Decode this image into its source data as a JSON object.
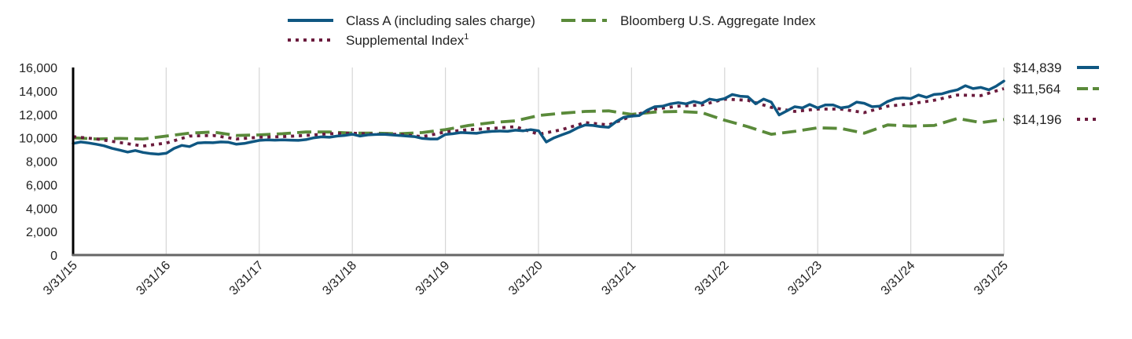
{
  "chart_data": {
    "type": "line",
    "title": "",
    "xlabel": "",
    "ylabel": "",
    "ylim": [
      0,
      16000
    ],
    "yticks": [
      0,
      2000,
      4000,
      6000,
      8000,
      10000,
      12000,
      14000,
      16000
    ],
    "ytick_labels": [
      "0",
      "2,000",
      "4,000",
      "6,000",
      "8,000",
      "10,000",
      "12,000",
      "14,000",
      "16,000"
    ],
    "xticks": [
      "3/31/15",
      "3/31/16",
      "3/31/17",
      "3/31/18",
      "3/31/19",
      "3/31/20",
      "3/31/21",
      "3/31/22",
      "3/31/23",
      "3/31/24",
      "3/31/25"
    ],
    "grid": "vertical",
    "legend_position": "top",
    "series": [
      {
        "name": "Class A (including sales charge)",
        "color": "#0f5782",
        "style": "solid",
        "end_label": "$14,839",
        "points": [
          [
            "2015-03-31",
            9520
          ],
          [
            "2015-04-30",
            9650
          ],
          [
            "2015-05-31",
            9560
          ],
          [
            "2015-06-30",
            9450
          ],
          [
            "2015-07-31",
            9320
          ],
          [
            "2015-08-31",
            9100
          ],
          [
            "2015-09-30",
            8950
          ],
          [
            "2015-10-31",
            8780
          ],
          [
            "2015-11-30",
            8920
          ],
          [
            "2015-12-31",
            8750
          ],
          [
            "2016-01-31",
            8650
          ],
          [
            "2016-02-29",
            8600
          ],
          [
            "2016-03-31",
            8680
          ],
          [
            "2016-04-30",
            9100
          ],
          [
            "2016-05-31",
            9350
          ],
          [
            "2016-06-30",
            9250
          ],
          [
            "2016-07-31",
            9550
          ],
          [
            "2016-08-31",
            9600
          ],
          [
            "2016-09-30",
            9580
          ],
          [
            "2016-10-31",
            9650
          ],
          [
            "2016-11-30",
            9620
          ],
          [
            "2016-12-31",
            9450
          ],
          [
            "2017-01-31",
            9520
          ],
          [
            "2017-02-28",
            9650
          ],
          [
            "2017-03-31",
            9780
          ],
          [
            "2017-04-30",
            9820
          ],
          [
            "2017-05-31",
            9800
          ],
          [
            "2017-06-30",
            9820
          ],
          [
            "2017-07-31",
            9800
          ],
          [
            "2017-08-31",
            9780
          ],
          [
            "2017-09-30",
            9850
          ],
          [
            "2017-10-31",
            10000
          ],
          [
            "2017-11-30",
            10080
          ],
          [
            "2017-12-31",
            10050
          ],
          [
            "2018-01-31",
            10150
          ],
          [
            "2018-02-28",
            10200
          ],
          [
            "2018-03-31",
            10300
          ],
          [
            "2018-04-30",
            10150
          ],
          [
            "2018-05-31",
            10250
          ],
          [
            "2018-06-30",
            10280
          ],
          [
            "2018-07-31",
            10300
          ],
          [
            "2018-08-31",
            10250
          ],
          [
            "2018-09-30",
            10200
          ],
          [
            "2018-10-31",
            10150
          ],
          [
            "2018-11-30",
            10100
          ],
          [
            "2018-12-31",
            9950
          ],
          [
            "2019-01-31",
            9900
          ],
          [
            "2019-02-28",
            9900
          ],
          [
            "2019-03-31",
            10280
          ],
          [
            "2019-04-30",
            10350
          ],
          [
            "2019-05-31",
            10450
          ],
          [
            "2019-06-30",
            10420
          ],
          [
            "2019-07-31",
            10380
          ],
          [
            "2019-08-31",
            10500
          ],
          [
            "2019-09-30",
            10550
          ],
          [
            "2019-10-31",
            10580
          ],
          [
            "2019-11-30",
            10550
          ],
          [
            "2019-12-31",
            10650
          ],
          [
            "2020-01-31",
            10600
          ],
          [
            "2020-02-29",
            10700
          ],
          [
            "2020-03-31",
            10600
          ],
          [
            "2020-04-30",
            9650
          ],
          [
            "2020-05-31",
            10000
          ],
          [
            "2020-06-30",
            10250
          ],
          [
            "2020-07-31",
            10500
          ],
          [
            "2020-08-31",
            10850
          ],
          [
            "2020-09-30",
            11100
          ],
          [
            "2020-10-31",
            11050
          ],
          [
            "2020-11-30",
            10950
          ],
          [
            "2020-12-31",
            10900
          ],
          [
            "2021-01-31",
            11400
          ],
          [
            "2021-02-28",
            11750
          ],
          [
            "2021-03-31",
            11850
          ],
          [
            "2021-04-30",
            11900
          ],
          [
            "2021-05-31",
            12350
          ],
          [
            "2021-06-30",
            12650
          ],
          [
            "2021-07-31",
            12700
          ],
          [
            "2021-08-31",
            12900
          ],
          [
            "2021-09-30",
            13000
          ],
          [
            "2021-10-31",
            12900
          ],
          [
            "2021-11-30",
            13100
          ],
          [
            "2021-12-31",
            12950
          ],
          [
            "2022-01-31",
            13300
          ],
          [
            "2022-02-28",
            13200
          ],
          [
            "2022-03-31",
            13350
          ],
          [
            "2022-04-30",
            13700
          ],
          [
            "2022-05-31",
            13550
          ],
          [
            "2022-06-30",
            13500
          ],
          [
            "2022-07-31",
            12900
          ],
          [
            "2022-08-31",
            13300
          ],
          [
            "2022-09-30",
            13050
          ],
          [
            "2022-10-31",
            11950
          ],
          [
            "2022-11-30",
            12300
          ],
          [
            "2022-12-31",
            12650
          ],
          [
            "2023-01-31",
            12550
          ],
          [
            "2023-02-28",
            12850
          ],
          [
            "2023-03-31",
            12550
          ],
          [
            "2023-04-30",
            12800
          ],
          [
            "2023-05-31",
            12800
          ],
          [
            "2023-06-30",
            12550
          ],
          [
            "2023-07-31",
            12650
          ],
          [
            "2023-08-31",
            13050
          ],
          [
            "2023-09-30",
            12950
          ],
          [
            "2023-10-31",
            12650
          ],
          [
            "2023-11-30",
            12700
          ],
          [
            "2023-12-31",
            13100
          ],
          [
            "2024-01-31",
            13350
          ],
          [
            "2024-02-29",
            13400
          ],
          [
            "2024-03-31",
            13350
          ],
          [
            "2024-04-30",
            13650
          ],
          [
            "2024-05-31",
            13450
          ],
          [
            "2024-06-30",
            13700
          ],
          [
            "2024-07-31",
            13750
          ],
          [
            "2024-08-31",
            13950
          ],
          [
            "2024-09-30",
            14100
          ],
          [
            "2024-10-31",
            14450
          ],
          [
            "2024-11-30",
            14200
          ],
          [
            "2024-12-31",
            14300
          ],
          [
            "2025-01-31",
            14100
          ],
          [
            "2025-02-28",
            14400
          ],
          [
            "2025-03-31",
            14839
          ]
        ]
      },
      {
        "name": "Bloomberg U.S. Aggregate Index",
        "color": "#5a8a3a",
        "style": "dashed",
        "end_label": "$11,564",
        "points": [
          [
            "2015-03-31",
            10000
          ],
          [
            "2015-06-30",
            9900
          ],
          [
            "2015-09-30",
            9950
          ],
          [
            "2015-12-31",
            9900
          ],
          [
            "2016-03-31",
            10150
          ],
          [
            "2016-06-30",
            10400
          ],
          [
            "2016-09-30",
            10500
          ],
          [
            "2016-12-31",
            10200
          ],
          [
            "2017-03-31",
            10250
          ],
          [
            "2017-06-30",
            10350
          ],
          [
            "2017-09-30",
            10500
          ],
          [
            "2017-12-31",
            10500
          ],
          [
            "2018-03-31",
            10400
          ],
          [
            "2018-06-30",
            10400
          ],
          [
            "2018-09-30",
            10350
          ],
          [
            "2018-12-31",
            10450
          ],
          [
            "2019-03-31",
            10700
          ],
          [
            "2019-06-30",
            11050
          ],
          [
            "2019-09-30",
            11300
          ],
          [
            "2019-12-31",
            11450
          ],
          [
            "2020-03-31",
            11900
          ],
          [
            "2020-06-30",
            12100
          ],
          [
            "2020-09-30",
            12250
          ],
          [
            "2020-12-31",
            12300
          ],
          [
            "2021-03-31",
            12000
          ],
          [
            "2021-06-30",
            12200
          ],
          [
            "2021-09-30",
            12250
          ],
          [
            "2021-12-31",
            12150
          ],
          [
            "2022-03-31",
            11500
          ],
          [
            "2022-06-30",
            10950
          ],
          [
            "2022-09-30",
            10300
          ],
          [
            "2022-12-31",
            10550
          ],
          [
            "2023-03-31",
            10850
          ],
          [
            "2023-06-30",
            10800
          ],
          [
            "2023-09-30",
            10400
          ],
          [
            "2023-12-31",
            11100
          ],
          [
            "2024-03-31",
            11000
          ],
          [
            "2024-06-30",
            11050
          ],
          [
            "2024-09-30",
            11650
          ],
          [
            "2024-12-31",
            11300
          ],
          [
            "2025-03-31",
            11564
          ]
        ]
      },
      {
        "name": "Supplemental Index",
        "name_superscript": "1",
        "color": "#6b1b3d",
        "style": "dotted",
        "end_label": "$14,196",
        "points": [
          [
            "2015-03-31",
            10100
          ],
          [
            "2015-06-30",
            9900
          ],
          [
            "2015-09-30",
            9600
          ],
          [
            "2015-12-31",
            9300
          ],
          [
            "2016-03-31",
            9550
          ],
          [
            "2016-06-30",
            10150
          ],
          [
            "2016-09-30",
            10200
          ],
          [
            "2016-12-31",
            9900
          ],
          [
            "2017-03-31",
            10050
          ],
          [
            "2017-06-30",
            10100
          ],
          [
            "2017-09-30",
            10200
          ],
          [
            "2017-12-31",
            10350
          ],
          [
            "2018-03-31",
            10400
          ],
          [
            "2018-06-30",
            10300
          ],
          [
            "2018-09-30",
            10300
          ],
          [
            "2018-12-31",
            10100
          ],
          [
            "2019-03-31",
            10500
          ],
          [
            "2019-06-30",
            10700
          ],
          [
            "2019-09-30",
            10800
          ],
          [
            "2019-12-31",
            10950
          ],
          [
            "2020-03-31",
            10300
          ],
          [
            "2020-06-30",
            10700
          ],
          [
            "2020-09-30",
            11300
          ],
          [
            "2020-12-31",
            11100
          ],
          [
            "2021-03-31",
            11850
          ],
          [
            "2021-06-30",
            12450
          ],
          [
            "2021-09-30",
            12700
          ],
          [
            "2021-12-31",
            12800
          ],
          [
            "2022-03-31",
            13300
          ],
          [
            "2022-06-30",
            13200
          ],
          [
            "2022-09-30",
            12600
          ],
          [
            "2022-12-31",
            12250
          ],
          [
            "2023-03-31",
            12450
          ],
          [
            "2023-06-30",
            12450
          ],
          [
            "2023-09-30",
            12150
          ],
          [
            "2023-12-31",
            12700
          ],
          [
            "2024-03-31",
            12900
          ],
          [
            "2024-06-30",
            13200
          ],
          [
            "2024-09-30",
            13650
          ],
          [
            "2024-12-31",
            13600
          ],
          [
            "2025-03-31",
            14196
          ]
        ]
      }
    ]
  }
}
